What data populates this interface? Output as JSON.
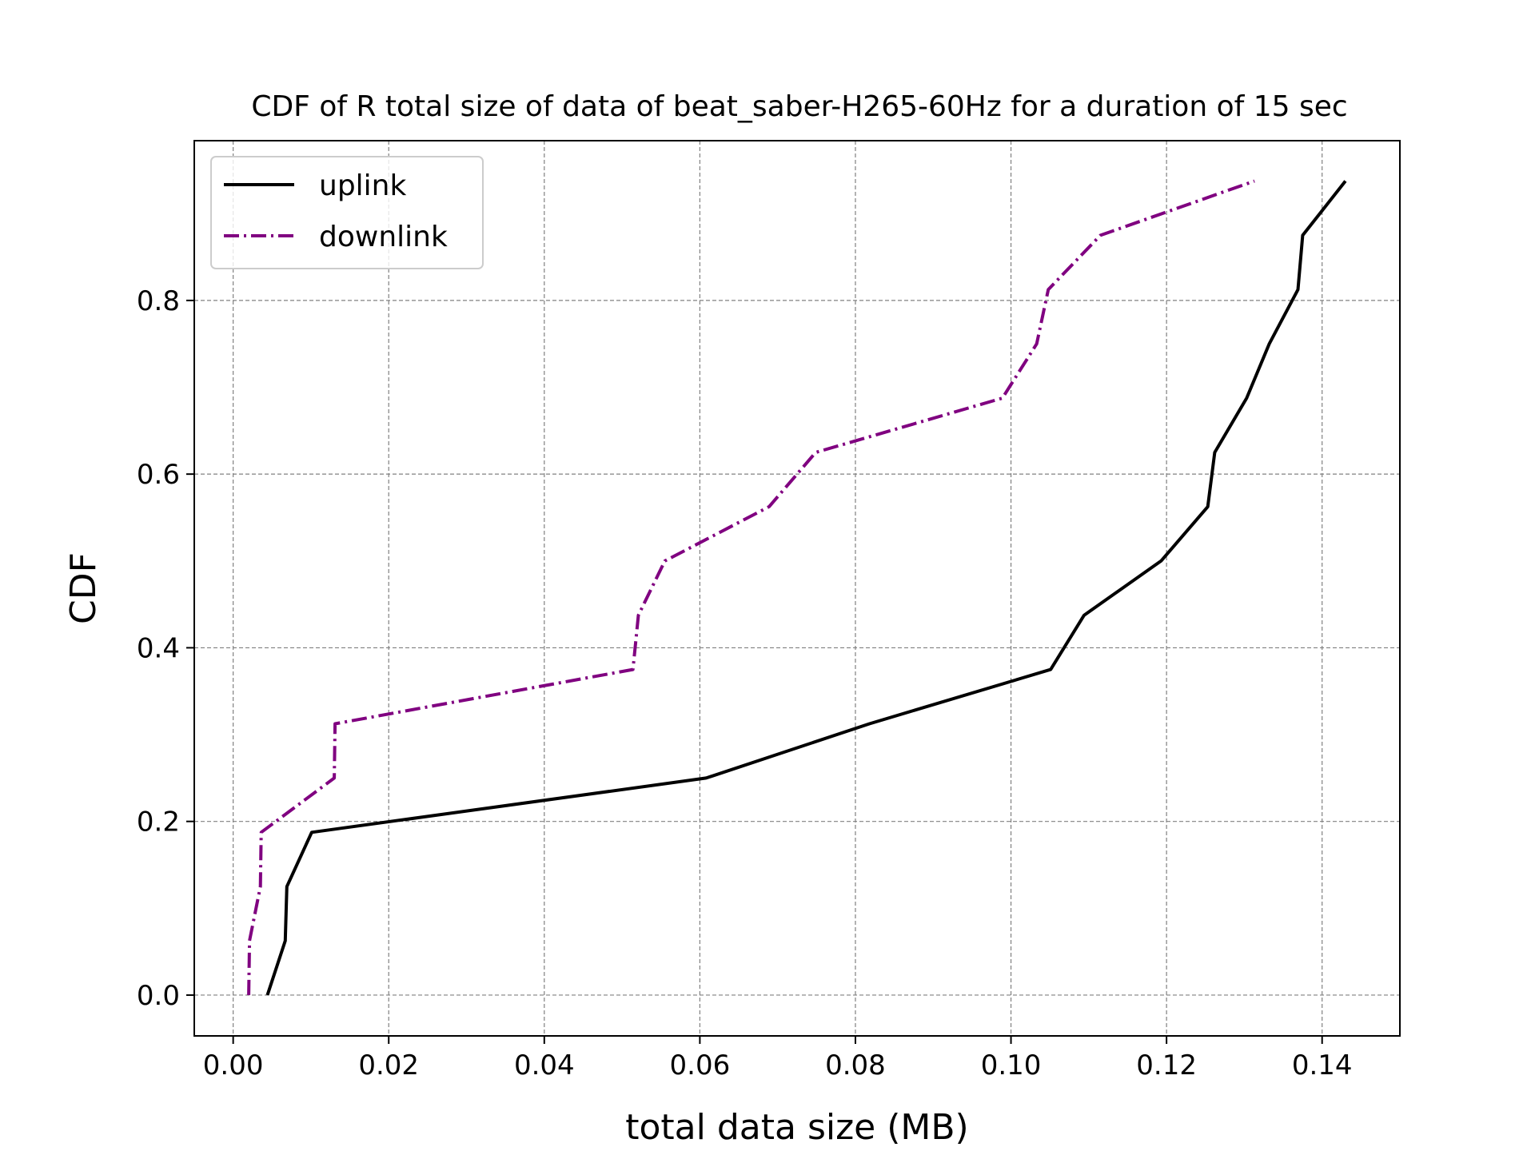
{
  "chart_data": {
    "type": "line",
    "title": "CDF of R total size of data of beat_saber-H265-60Hz for a duration of 15 sec",
    "xlabel": "total data size (MB)",
    "ylabel": "CDF",
    "xlim": [
      -0.005,
      0.15
    ],
    "ylim": [
      -0.047,
      0.984
    ],
    "xticks": [
      0.0,
      0.02,
      0.04,
      0.06,
      0.08,
      0.1,
      0.12,
      0.14
    ],
    "xtick_labels": [
      "0.00",
      "0.02",
      "0.04",
      "0.06",
      "0.08",
      "0.10",
      "0.12",
      "0.14"
    ],
    "yticks": [
      0.0,
      0.2,
      0.4,
      0.6,
      0.8
    ],
    "ytick_labels": [
      "0.0",
      "0.2",
      "0.4",
      "0.6",
      "0.8"
    ],
    "grid": true,
    "legend_position": "top-left",
    "series": [
      {
        "name": "uplink",
        "color": "#000000",
        "linestyle": "solid",
        "x": [
          0.0044,
          0.0067,
          0.0069,
          0.0101,
          0.0608,
          0.0818,
          0.1051,
          0.1094,
          0.1193,
          0.1253,
          0.1262,
          0.1303,
          0.1332,
          0.1369,
          0.1375,
          0.143
        ],
        "y": [
          0.0,
          0.0625,
          0.125,
          0.1875,
          0.25,
          0.3125,
          0.375,
          0.4375,
          0.5,
          0.5625,
          0.625,
          0.6875,
          0.75,
          0.8125,
          0.875,
          0.9375
        ]
      },
      {
        "name": "downlink",
        "color": "#800080",
        "linestyle": "dashdot",
        "x": [
          0.002,
          0.0021,
          0.0035,
          0.0036,
          0.013,
          0.0131,
          0.0514,
          0.0521,
          0.0555,
          0.0689,
          0.0749,
          0.0989,
          0.1033,
          0.1048,
          0.1115,
          0.1313
        ],
        "y": [
          0.0,
          0.0625,
          0.125,
          0.1875,
          0.25,
          0.3125,
          0.375,
          0.4375,
          0.5,
          0.5625,
          0.625,
          0.6875,
          0.75,
          0.8125,
          0.875,
          0.9375
        ]
      }
    ]
  }
}
